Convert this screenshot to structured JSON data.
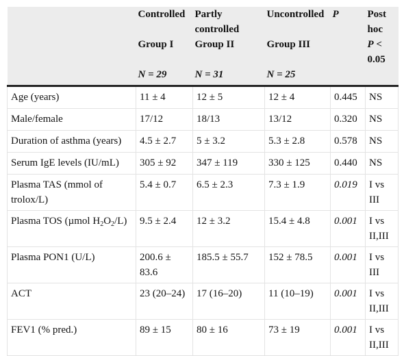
{
  "table": {
    "header": {
      "c1": {
        "line1": "Controlled",
        "line2": "",
        "group": "Group I",
        "n_label": "N",
        "n_value": "= 29"
      },
      "c2": {
        "line1": "Partly",
        "line2": "controlled",
        "group": "Group II",
        "n_label": "N",
        "n_value": "= 31"
      },
      "c3": {
        "line1": "Uncontrolled",
        "line2": "",
        "group": "Group III",
        "n_label": "N",
        "n_value": "= 25"
      },
      "c4": {
        "label": "P"
      },
      "c5": {
        "line1": "Post",
        "line2": "hoc",
        "p_label": "P",
        "p_rest": "<",
        "p_val": "0.05"
      }
    },
    "rows": [
      {
        "label": "Age (years)",
        "g1": "11 ± 4",
        "g2": "12 ± 5",
        "g3": "12 ± 4",
        "p": "0.445",
        "post": "NS"
      },
      {
        "label": "Male/female",
        "g1": "17/12",
        "g2": "18/13",
        "g3": "13/12",
        "p": "0.320",
        "post": "NS"
      },
      {
        "label": "Duration of asthma (years)",
        "g1": "4.5 ± 2.7",
        "g2": "5 ± 3.2",
        "g3": "5.3 ± 2.8",
        "p": "0.578",
        "post": "NS"
      },
      {
        "label": "Serum IgE levels (IU/mL)",
        "g1": "305 ± 92",
        "g2": "347 ± 119",
        "g3": "330 ± 125",
        "p": "0.440",
        "post": "NS"
      },
      {
        "label": "Plasma TAS (mmol of trolox/L)",
        "g1": "5.4 ± 0.7",
        "g2": "6.5 ± 2.3",
        "g3": "7.3 ± 1.9",
        "p": "0.019",
        "post": "I vs III"
      },
      {
        "label_pre": "Plasma TOS (µmol H",
        "label_sub1": "2",
        "label_mid": "O",
        "label_sub2": "2",
        "label_post": "/L)",
        "g1": "9.5 ± 2.4",
        "g2": "12 ± 3.2",
        "g3": "15.4 ± 4.8",
        "p": "0.001",
        "post": "I vs II,III"
      },
      {
        "label": "Plasma PON1 (U/L)",
        "g1": "200.6 ± 83.6",
        "g2": "185.5 ± 55.7",
        "g3": "152 ± 78.5",
        "p": "0.001",
        "post": "I vs III"
      },
      {
        "label": "ACT",
        "g1": "23 (20–24)",
        "g2": "17 (16–20)",
        "g3": "11 (10–19)",
        "p": "0.001",
        "post": "I vs II,III"
      },
      {
        "label": "FEV1 (% pred.)",
        "g1": "89 ± 15",
        "g2": "80 ± 16",
        "g3": "73 ± 19",
        "p": "0.001",
        "post": "I vs II,III"
      }
    ]
  }
}
